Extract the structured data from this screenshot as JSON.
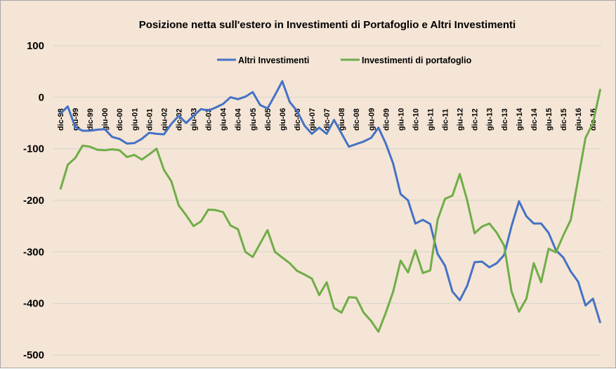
{
  "chart_data": {
    "type": "line",
    "title": "Posizione netta sull'estero in Investimenti di Portafoglio e Altri Investimenti",
    "xlabel": "",
    "ylabel": "",
    "ylim": [
      -500,
      100
    ],
    "yticks": [
      100,
      0,
      -100,
      -200,
      -300,
      -400,
      -500
    ],
    "ytick_labels": [
      "100",
      "0",
      "-100",
      "-200",
      "-300",
      "-400",
      "-500"
    ],
    "grid": true,
    "legend_position": "top-center",
    "x_tick_labels": [
      "dic-98",
      "giu-99",
      "dic-99",
      "giu-00",
      "dic-00",
      "giu-01",
      "dic-01",
      "giu-02",
      "dic-02",
      "giu-03",
      "dic-03",
      "giu-04",
      "dic-04",
      "giu-05",
      "dic-05",
      "giu-06",
      "dic-06",
      "giu-07",
      "dic-07",
      "giu-08",
      "dic-08",
      "giu-09",
      "dic-09",
      "giu-10",
      "dic-10",
      "giu-11",
      "dic-11",
      "giu-12",
      "dic-12",
      "giu-13",
      "dic-13",
      "giu-14",
      "dic-14",
      "giu-15",
      "dic-15",
      "giu-16",
      "dic-16"
    ],
    "points_per_tick": 2,
    "series": [
      {
        "name": "Altri Investimenti",
        "color": "#4472C4",
        "values": [
          -32,
          -18,
          -58,
          -65,
          -65,
          -63,
          -62,
          -77,
          -81,
          -90,
          -89,
          -81,
          -69,
          -71,
          -72,
          -52,
          -36,
          -50,
          -36,
          -23,
          -26,
          -20,
          -13,
          0,
          -4,
          1,
          10,
          -15,
          -22,
          4,
          31,
          -9,
          -27,
          -55,
          -71,
          -59,
          -71,
          -44,
          -70,
          -96,
          -91,
          -86,
          -79,
          -59,
          -90,
          -129,
          -188,
          -200,
          -245,
          -238,
          -246,
          -304,
          -327,
          -377,
          -394,
          -366,
          -320,
          -319,
          -330,
          -322,
          -306,
          -250,
          -202,
          -231,
          -245,
          -245,
          -263,
          -297,
          -311,
          -338,
          -358,
          -404,
          -391,
          -438
        ]
      },
      {
        "name": "Investimenti di portafoglio",
        "color": "#70AD47",
        "values": [
          -179,
          -131,
          -118,
          -94,
          -96,
          -102,
          -103,
          -101,
          -103,
          -116,
          -112,
          -121,
          -111,
          -100,
          -141,
          -163,
          -210,
          -229,
          -250,
          -241,
          -218,
          -219,
          -223,
          -249,
          -256,
          -300,
          -310,
          -284,
          -258,
          -300,
          -311,
          -322,
          -337,
          -344,
          -352,
          -384,
          -359,
          -409,
          -418,
          -388,
          -389,
          -418,
          -434,
          -455,
          -418,
          -377,
          -317,
          -340,
          -297,
          -341,
          -336,
          -238,
          -197,
          -191,
          -149,
          -200,
          -264,
          -251,
          -245,
          -263,
          -288,
          -377,
          -416,
          -391,
          -322,
          -359,
          -294,
          -301,
          -268,
          -238,
          -159,
          -79,
          -50,
          16
        ]
      }
    ]
  }
}
